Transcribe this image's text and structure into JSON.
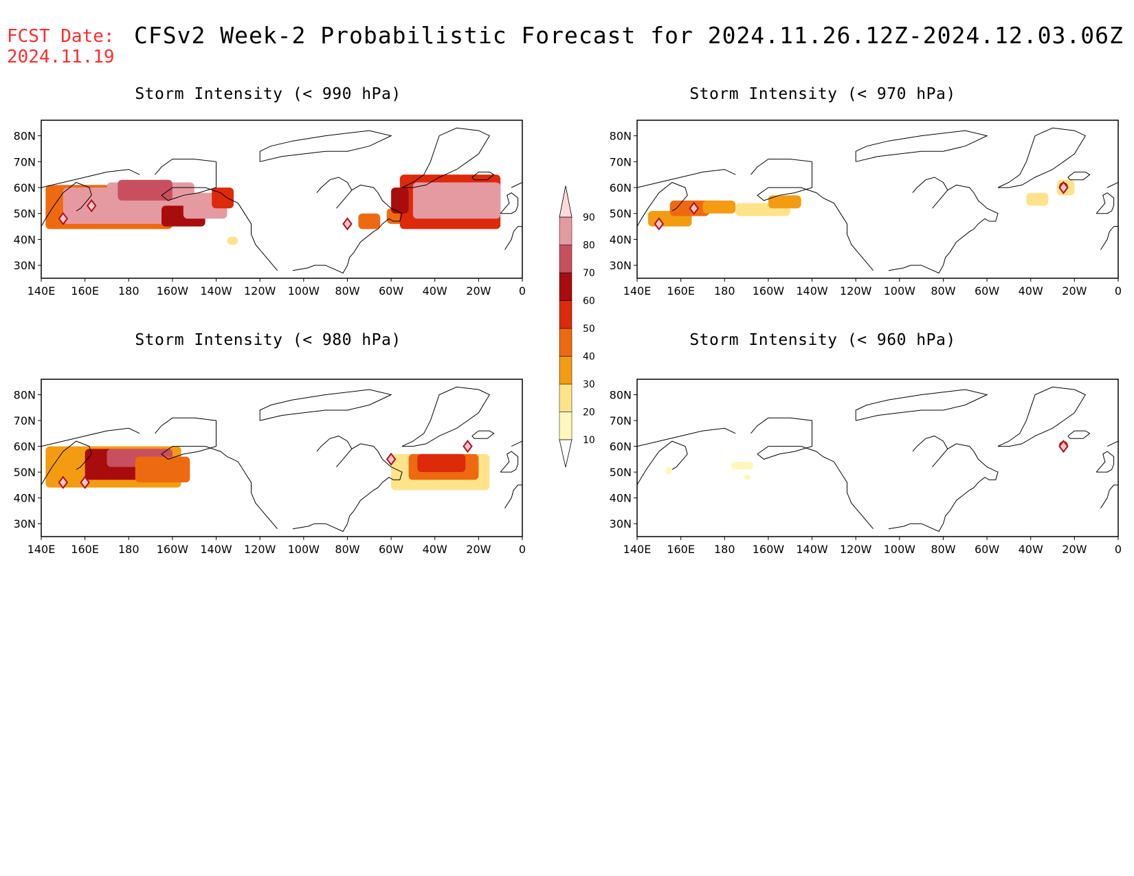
{
  "header": {
    "fcst_label": "FCST Date:",
    "fcst_date": "2024.11.19",
    "title": "CFSv2 Week-2 Probabilistic Forecast for 2024.11.26.12Z-2024.12.03.06Z",
    "fcst_color": "#ff2b2b"
  },
  "panels": [
    {
      "title": "Storm Intensity (< 990 hPa)",
      "threshold": "990"
    },
    {
      "title": "Storm Intensity (< 970 hPa)",
      "threshold": "970"
    },
    {
      "title": "Storm Intensity (< 980 hPa)",
      "threshold": "980"
    },
    {
      "title": "Storm Intensity (< 960 hPa)",
      "threshold": "960"
    }
  ],
  "axes": {
    "lat_labels": [
      "80N",
      "70N",
      "60N",
      "50N",
      "40N",
      "30N"
    ],
    "lat_values": [
      80,
      70,
      60,
      50,
      40,
      30
    ],
    "lon_labels": [
      "140E",
      "160E",
      "180",
      "160W",
      "140W",
      "120W",
      "100W",
      "80W",
      "60W",
      "40W",
      "20W",
      "0"
    ],
    "lon_values": [
      140,
      160,
      180,
      200,
      220,
      240,
      260,
      280,
      300,
      320,
      340,
      360
    ],
    "lon_range": [
      140,
      360
    ],
    "lat_range": [
      25,
      86
    ]
  },
  "colorbar": {
    "labels": [
      "10",
      "20",
      "30",
      "40",
      "50",
      "60",
      "70",
      "80",
      "90"
    ],
    "colors": [
      "#fff7bc",
      "#fde38a",
      "#f39c12",
      "#ee6a10",
      "#dc2a0a",
      "#a80c0c",
      "#c8505e",
      "#e59aa2",
      "#fbd9dc"
    ]
  },
  "storm_patches": [
    [
      {
        "lon": 142,
        "lat": 44,
        "w": 58,
        "h": 17,
        "level": 4
      },
      {
        "lon": 150,
        "lat": 46,
        "w": 50,
        "h": 14,
        "level": 8
      },
      {
        "lon": 170,
        "lat": 50,
        "w": 40,
        "h": 12,
        "level": 8
      },
      {
        "lon": 175,
        "lat": 55,
        "w": 25,
        "h": 8,
        "level": 7
      },
      {
        "lon": 195,
        "lat": 45,
        "w": 20,
        "h": 8,
        "level": 6
      },
      {
        "lon": 205,
        "lat": 48,
        "w": 20,
        "h": 10,
        "level": 8
      },
      {
        "lon": 218,
        "lat": 52,
        "w": 10,
        "h": 8,
        "level": 5
      },
      {
        "lon": 225,
        "lat": 38,
        "w": 5,
        "h": 3,
        "level": 2
      },
      {
        "lon": 285,
        "lat": 44,
        "w": 10,
        "h": 6,
        "level": 4
      },
      {
        "lon": 298,
        "lat": 46,
        "w": 12,
        "h": 6,
        "level": 4
      },
      {
        "lon": 304,
        "lat": 44,
        "w": 46,
        "h": 21,
        "level": 5
      },
      {
        "lon": 310,
        "lat": 48,
        "w": 40,
        "h": 14,
        "level": 8
      },
      {
        "lon": 300,
        "lat": 50,
        "w": 8,
        "h": 10,
        "level": 6
      }
    ],
    [
      {
        "lon": 145,
        "lat": 45,
        "w": 20,
        "h": 6,
        "level": 3
      },
      {
        "lon": 155,
        "lat": 49,
        "w": 18,
        "h": 6,
        "level": 4
      },
      {
        "lon": 170,
        "lat": 50,
        "w": 15,
        "h": 5,
        "level": 3
      },
      {
        "lon": 185,
        "lat": 49,
        "w": 25,
        "h": 5,
        "level": 2
      },
      {
        "lon": 200,
        "lat": 52,
        "w": 15,
        "h": 5,
        "level": 3
      },
      {
        "lon": 318,
        "lat": 53,
        "w": 10,
        "h": 5,
        "level": 2
      },
      {
        "lon": 332,
        "lat": 57,
        "w": 8,
        "h": 6,
        "level": 2
      },
      {
        "lon": 333,
        "lat": 59,
        "w": 4,
        "h": 3,
        "level": 5
      }
    ],
    [
      {
        "lon": 142,
        "lat": 44,
        "w": 62,
        "h": 16,
        "level": 3
      },
      {
        "lon": 160,
        "lat": 47,
        "w": 40,
        "h": 12,
        "level": 6
      },
      {
        "lon": 170,
        "lat": 52,
        "w": 30,
        "h": 7,
        "level": 7
      },
      {
        "lon": 183,
        "lat": 46,
        "w": 25,
        "h": 10,
        "level": 4
      },
      {
        "lon": 300,
        "lat": 43,
        "w": 45,
        "h": 14,
        "level": 2
      },
      {
        "lon": 308,
        "lat": 47,
        "w": 32,
        "h": 10,
        "level": 4
      },
      {
        "lon": 312,
        "lat": 50,
        "w": 22,
        "h": 7,
        "level": 5
      }
    ],
    [
      {
        "lon": 153,
        "lat": 49,
        "w": 3,
        "h": 3,
        "level": 1
      },
      {
        "lon": 183,
        "lat": 51,
        "w": 10,
        "h": 3,
        "level": 1
      },
      {
        "lon": 189,
        "lat": 47,
        "w": 3,
        "h": 2,
        "level": 1
      },
      {
        "lon": 333,
        "lat": 59,
        "w": 4,
        "h": 3,
        "level": 5
      }
    ]
  ],
  "storm_peaks": [
    [
      {
        "lon": 163,
        "lat": 53,
        "level": 8
      },
      {
        "lon": 150,
        "lat": 48,
        "level": 7
      },
      {
        "lon": 280,
        "lat": 46,
        "level": 7
      }
    ],
    [
      {
        "lon": 150,
        "lat": 46,
        "level": 7
      },
      {
        "lon": 166,
        "lat": 52,
        "level": 7
      },
      {
        "lon": 335,
        "lat": 60,
        "level": 7
      }
    ],
    [
      {
        "lon": 150,
        "lat": 46,
        "level": 7
      },
      {
        "lon": 160,
        "lat": 46,
        "level": 7
      },
      {
        "lon": 300,
        "lat": 55,
        "level": 7
      },
      {
        "lon": 335,
        "lat": 60,
        "level": 7
      }
    ],
    [
      {
        "lon": 335,
        "lat": 60,
        "level": 7
      }
    ]
  ]
}
